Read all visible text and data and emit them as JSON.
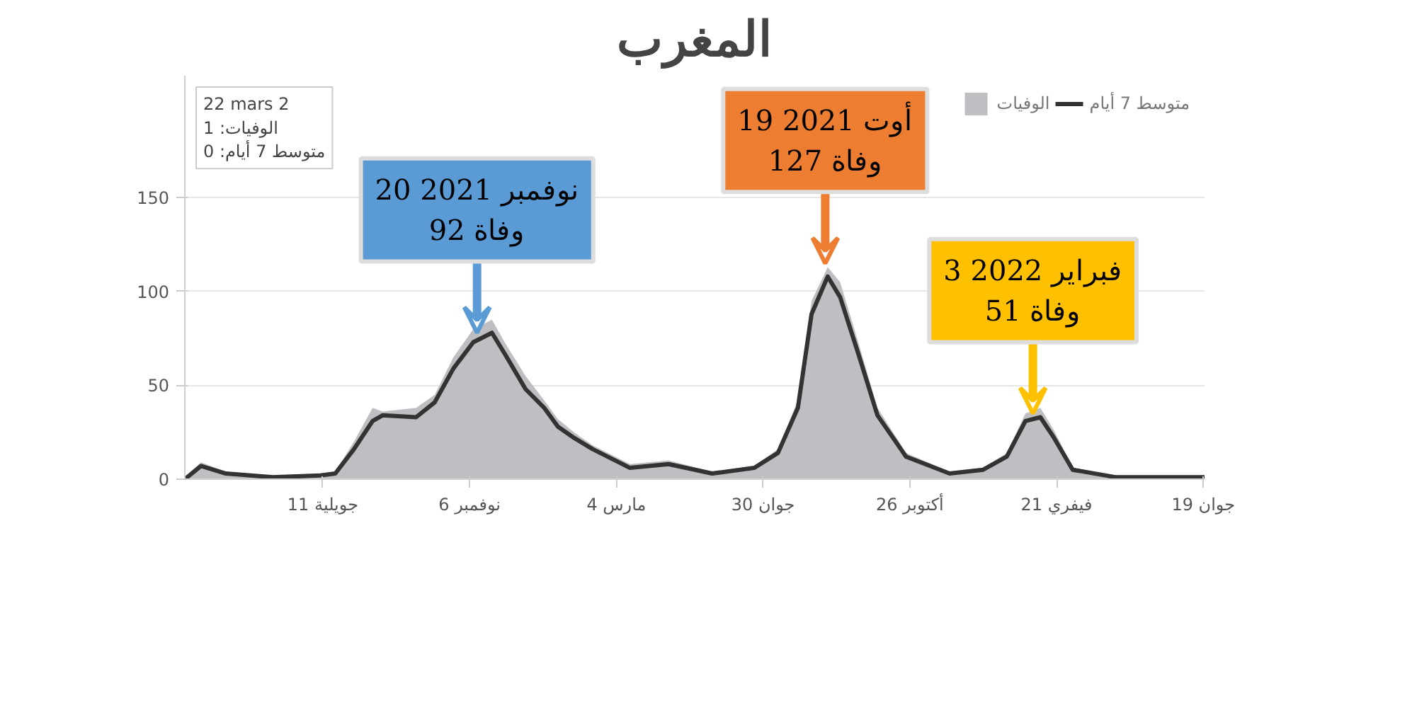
{
  "chart_data": {
    "type": "line",
    "title": "المغرب",
    "x": [
      "2020-03-22",
      "2020-04-04",
      "2020-04-24",
      "2020-06-01",
      "2020-07-09",
      "2020-07-21",
      "2020-08-05",
      "2020-08-20",
      "2020-08-28",
      "2020-09-24",
      "2020-10-09",
      "2020-10-24",
      "2020-11-09",
      "2020-11-24",
      "2020-12-05",
      "2020-12-21",
      "2021-01-05",
      "2021-01-16",
      "2021-01-29",
      "2021-02-13",
      "2021-03-15",
      "2021-04-15",
      "2021-05-20",
      "2021-06-23",
      "2021-07-12",
      "2021-07-28",
      "2021-08-08",
      "2021-08-21",
      "2021-08-31",
      "2021-09-15",
      "2021-09-30",
      "2021-10-23",
      "2021-11-27",
      "2021-12-24",
      "2022-01-12",
      "2022-01-27",
      "2022-02-08",
      "2022-02-19",
      "2022-03-06",
      "2022-04-10",
      "2022-06-20"
    ],
    "series": [
      {
        "name": "الوفيات",
        "type": "area",
        "color": "#bdbfc2",
        "values": [
          1,
          9,
          4,
          1,
          2,
          4,
          20,
          38,
          36,
          38,
          45,
          65,
          80,
          85,
          72,
          55,
          42,
          32,
          25,
          18,
          8,
          10,
          4,
          7,
          16,
          42,
          95,
          113,
          105,
          72,
          38,
          14,
          4,
          6,
          14,
          35,
          38,
          26,
          6,
          2,
          1
        ]
      },
      {
        "name": "متوسط 7 أيام",
        "color": "#333333",
        "values": [
          0,
          7,
          3,
          1,
          2,
          3,
          16,
          31,
          34,
          33,
          41,
          59,
          73,
          78,
          66,
          48,
          38,
          28,
          22,
          16,
          6,
          8,
          3,
          6,
          14,
          38,
          88,
          108,
          97,
          66,
          34,
          12,
          3,
          5,
          12,
          31,
          33,
          22,
          5,
          1,
          1
        ]
      }
    ],
    "xlim": [
      "2020-03-22",
      "2022-06-20"
    ],
    "xticks": [
      {
        "value": "2020-07-11",
        "label": "11 جويلية"
      },
      {
        "value": "2020-11-06",
        "label": "6 نوفمبر"
      },
      {
        "value": "2021-03-04",
        "label": "4 مارس"
      },
      {
        "value": "2021-06-30",
        "label": "30 جوان"
      },
      {
        "value": "2021-10-26",
        "label": "26 أكتوبر"
      },
      {
        "value": "2022-02-21",
        "label": "21 فيفري"
      },
      {
        "value": "2022-06-19",
        "label": "19 جوان"
      }
    ],
    "ylim": [
      0,
      215
    ],
    "yticks": [
      0,
      50,
      100,
      150
    ],
    "grid": "y",
    "legend": "top right",
    "annotations": [
      {
        "text": "20 نوفمبر 2021\n92 وفاة",
        "x": "2020-11-12",
        "y": 78
      },
      {
        "text": "19 أوت 2021\n127 وفاة",
        "x": "2021-08-19",
        "y": 115
      },
      {
        "text": "3 فبراير 2022\n51 وفاة",
        "x": "2022-02-02",
        "y": 35
      },
      "22 mars 2\nالوفيات: 1\nمتوسط 7 أيام: 0"
    ]
  }
}
